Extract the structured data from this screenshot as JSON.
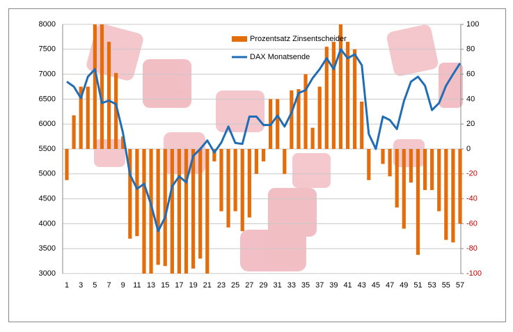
{
  "chart_data": {
    "type": "bar-line",
    "categories": [
      "1",
      null,
      "3",
      null,
      "5",
      null,
      "7",
      null,
      "9",
      null,
      "11",
      null,
      "13",
      null,
      "15",
      null,
      "17",
      null,
      "19",
      null,
      "21",
      null,
      "23",
      null,
      "25",
      null,
      "27",
      null,
      "29",
      null,
      "31",
      null,
      "33",
      null,
      "35",
      null,
      "37",
      null,
      "39",
      null,
      "41",
      null,
      "43",
      null,
      "45",
      null,
      "47",
      null,
      "49",
      null,
      "51",
      null,
      "53",
      null,
      "55",
      null,
      "57"
    ],
    "series": [
      {
        "name": "Prozentsatz Zinsentscheider",
        "type": "bar",
        "axis": "y2",
        "color": "#e46c0a",
        "values": [
          -25,
          27,
          50,
          50,
          100,
          100,
          86,
          61,
          10,
          -72,
          -70,
          -100,
          -100,
          -93,
          -94,
          -100,
          -100,
          -100,
          -96,
          -88,
          -100,
          -10,
          -50,
          -63,
          -50,
          -66,
          -55,
          -20,
          -10,
          40,
          40,
          -20,
          47,
          48,
          60,
          17,
          50,
          82,
          86,
          100,
          86,
          80,
          38,
          -25,
          0,
          -12,
          -22,
          -47,
          -64,
          -27,
          -85,
          -33,
          -33,
          -50,
          -73,
          -75,
          -60
        ]
      },
      {
        "name": "DAX Monatsende",
        "type": "line",
        "color": "#1f6db5",
        "values": [
          6850,
          6750,
          6520,
          6950,
          7100,
          6420,
          6470,
          6400,
          5820,
          4980,
          4700,
          4800,
          4380,
          3850,
          4130,
          4750,
          4950,
          4830,
          5360,
          5500,
          5670,
          5430,
          5630,
          5950,
          5620,
          5600,
          6150,
          6150,
          5980,
          5980,
          6170,
          5950,
          6230,
          6620,
          6680,
          6920,
          7100,
          7320,
          7100,
          7500,
          7320,
          7400,
          7180,
          5800,
          5500,
          6150,
          6080,
          5900,
          6460,
          6850,
          6950,
          6770,
          6280,
          6420,
          6770,
          7000,
          7220
        ]
      }
    ],
    "ylim": [
      3000,
      8000
    ],
    "yticks": [
      3000,
      3500,
      4000,
      4500,
      5000,
      5500,
      6000,
      6500,
      7000,
      7500,
      8000
    ],
    "y2lim": [
      -100,
      100
    ],
    "y2ticks": [
      -100,
      -80,
      -60,
      -40,
      -20,
      0,
      20,
      40,
      60,
      80,
      100
    ],
    "grid": true,
    "legend": "top"
  }
}
